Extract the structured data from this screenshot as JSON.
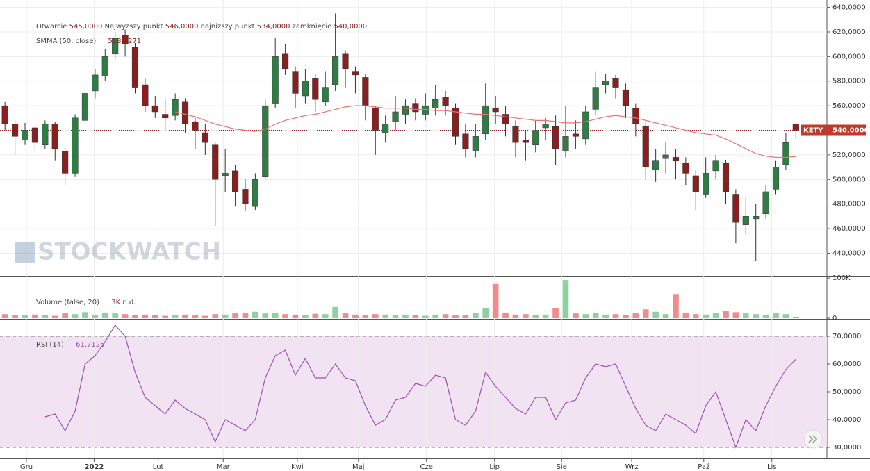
{
  "chart_data": [
    {
      "type": "candlestick",
      "symbol": "KETY",
      "last_label": "540,0000",
      "watermark": "STOCKWATCH",
      "legend": [
        {
          "name": "Otwarcie",
          "label": "545,0000"
        },
        {
          "name": "Najwyzszy punkt",
          "label": "546,0000"
        },
        {
          "name": "najnizszy punkt",
          "label": "534,0000"
        },
        {
          "name": "zamknięcie",
          "label": "540,0000"
        }
      ],
      "categories": [
        null,
        null,
        null,
        null,
        null,
        null,
        null,
        null,
        null,
        null,
        null,
        null,
        null,
        null,
        null,
        null,
        null,
        null,
        null,
        null,
        null,
        null,
        null,
        null,
        null,
        null,
        null,
        null,
        null,
        null,
        null,
        null,
        null,
        null,
        null,
        null,
        null,
        null,
        null,
        null,
        null,
        null,
        null,
        null,
        null,
        null,
        null,
        null,
        null,
        null,
        null,
        null,
        null,
        null,
        null,
        null,
        null,
        null,
        null,
        null,
        null,
        null,
        null,
        null,
        null,
        null,
        null,
        null,
        null,
        null,
        null,
        null,
        null,
        null,
        null,
        null,
        null,
        null,
        null,
        null
      ],
      "open": [
        560,
        545,
        532,
        542,
        528,
        545,
        523,
        505,
        548,
        572,
        584,
        602,
        617,
        608,
        577,
        560,
        553,
        552,
        563,
        547,
        538,
        528,
        503,
        507,
        492,
        478,
        502,
        562,
        602,
        588,
        568,
        582,
        563,
        577,
        602,
        588,
        583,
        558,
        538,
        547,
        553,
        562,
        553,
        558,
        567,
        558,
        537,
        523,
        537,
        558,
        553,
        543,
        532,
        528,
        542,
        543,
        523,
        537,
        533,
        557,
        577,
        582,
        573,
        558,
        543,
        508,
        517,
        518,
        513,
        503,
        488,
        507,
        513,
        488,
        463,
        468,
        472,
        492,
        512,
        545
      ],
      "high": [
        563,
        548,
        546,
        545,
        548,
        547,
        526,
        553,
        575,
        590,
        606,
        620,
        622,
        611,
        582,
        568,
        566,
        570,
        566,
        550,
        545,
        530,
        525,
        512,
        500,
        505,
        565,
        615,
        610,
        592,
        590,
        586,
        588,
        635,
        605,
        592,
        586,
        560,
        552,
        568,
        565,
        566,
        570,
        577,
        572,
        562,
        545,
        545,
        578,
        568,
        560,
        548,
        540,
        548,
        550,
        552,
        560,
        548,
        560,
        588,
        586,
        585,
        578,
        562,
        546,
        525,
        530,
        525,
        518,
        508,
        518,
        520,
        516,
        492,
        486,
        480,
        495,
        515,
        538,
        546
      ],
      "low": [
        540,
        520,
        528,
        522,
        525,
        515,
        495,
        502,
        545,
        566,
        580,
        598,
        600,
        570,
        555,
        550,
        540,
        548,
        538,
        525,
        520,
        462,
        490,
        478,
        474,
        475,
        500,
        558,
        585,
        558,
        562,
        555,
        560,
        572,
        575,
        570,
        548,
        520,
        530,
        540,
        545,
        548,
        548,
        552,
        552,
        528,
        518,
        518,
        532,
        545,
        535,
        518,
        515,
        522,
        532,
        512,
        518,
        525,
        528,
        552,
        570,
        566,
        550,
        535,
        500,
        498,
        505,
        500,
        495,
        475,
        485,
        500,
        480,
        448,
        455,
        434,
        468,
        488,
        508,
        534
      ],
      "close": [
        545,
        535,
        540,
        530,
        545,
        525,
        505,
        550,
        570,
        585,
        600,
        615,
        610,
        575,
        560,
        555,
        550,
        565,
        545,
        540,
        530,
        500,
        505,
        490,
        480,
        500,
        560,
        600,
        590,
        570,
        580,
        565,
        575,
        600,
        590,
        585,
        560,
        540,
        545,
        555,
        560,
        555,
        560,
        565,
        560,
        535,
        525,
        535,
        560,
        555,
        545,
        530,
        530,
        540,
        545,
        525,
        535,
        535,
        555,
        575,
        580,
        575,
        560,
        545,
        510,
        515,
        520,
        515,
        505,
        490,
        505,
        515,
        490,
        465,
        470,
        470,
        490,
        510,
        530,
        540
      ],
      "up_color": "#2f7d45",
      "down_color": "#8b1e1e",
      "series": [
        {
          "name": "SMMA (50, close)",
          "color": "#f07070",
          "last_label": "518,7271",
          "values": [
            null,
            null,
            null,
            null,
            null,
            null,
            null,
            null,
            null,
            null,
            null,
            null,
            null,
            null,
            null,
            null,
            null,
            555,
            553,
            551,
            548,
            545,
            543,
            541,
            540,
            539,
            541,
            545,
            548,
            550,
            552,
            553,
            555,
            557,
            559,
            560,
            560,
            559,
            558,
            558,
            558,
            557,
            557,
            556,
            556,
            555,
            554,
            553,
            553,
            552,
            551,
            550,
            549,
            548,
            548,
            547,
            546,
            546,
            547,
            549,
            551,
            552,
            551,
            550,
            548,
            546,
            544,
            542,
            540,
            538,
            537,
            536,
            533,
            529,
            525,
            521,
            519,
            518,
            518,
            518.7271
          ]
        }
      ],
      "xlim": [
        -0.5,
        82.1
      ],
      "ylim": [
        421,
        646
      ],
      "yticks": [
        {
          "value": 440,
          "label": "440,0000"
        },
        {
          "value": 460,
          "label": "460,0000"
        },
        {
          "value": 480,
          "label": "480,0000"
        },
        {
          "value": 500,
          "label": "500,0000"
        },
        {
          "value": 520,
          "label": "520,0000"
        },
        {
          "value": 540,
          "label": "540,0000"
        },
        {
          "value": 560,
          "label": "560,0000"
        },
        {
          "value": 580,
          "label": "580,0000"
        },
        {
          "value": 600,
          "label": "600,0000"
        },
        {
          "value": 620,
          "label": "620,0000"
        },
        {
          "value": 640,
          "label": "640,0000"
        }
      ],
      "xticks": [
        {
          "value": 2.14,
          "label": "Gru"
        },
        {
          "value": 8.9,
          "label": "2022"
        },
        {
          "value": 15.3,
          "label": "Lut"
        },
        {
          "value": 21.8,
          "label": "Mar"
        },
        {
          "value": 29.2,
          "label": "Kwi"
        },
        {
          "value": 35.3,
          "label": "Maj"
        },
        {
          "value": 42.1,
          "label": "Cze"
        },
        {
          "value": 48.9,
          "label": "Lip"
        },
        {
          "value": 55.6,
          "label": "Sie"
        },
        {
          "value": 62.6,
          "label": "Wrz"
        },
        {
          "value": 69.8,
          "label": "Paź"
        },
        {
          "value": 76.6,
          "label": "Lis"
        }
      ],
      "grid": true
    },
    {
      "type": "bar",
      "name": "Volume (false, 20)",
      "last_label": "3K",
      "note": "n.d.",
      "up_color": "#8fd19e",
      "down_color": "#f28b8b",
      "values": [
        10000,
        8000,
        7000,
        9000,
        8000,
        6000,
        12000,
        10000,
        15000,
        8000,
        14000,
        12000,
        10000,
        8000,
        9000,
        7000,
        6000,
        8000,
        9000,
        7000,
        6000,
        10000,
        9000,
        12000,
        14000,
        16000,
        12000,
        14000,
        10000,
        9000,
        8000,
        11000,
        10000,
        28000,
        12000,
        9000,
        8000,
        10000,
        9000,
        7000,
        9000,
        8000,
        6000,
        9000,
        10000,
        7000,
        8000,
        12000,
        25000,
        85000,
        14000,
        9000,
        10000,
        8000,
        9000,
        25000,
        95000,
        12000,
        10000,
        14000,
        9000,
        10000,
        8000,
        12000,
        22000,
        16000,
        10000,
        60000,
        14000,
        10000,
        9000,
        12000,
        18000,
        15000,
        12000,
        10000,
        9000,
        12000,
        10000,
        3000
      ],
      "ylim": [
        0,
        102000
      ],
      "yticks": [
        0,
        {
          "value": 100000,
          "label": "100K"
        }
      ]
    },
    {
      "type": "line",
      "name": "RSI (14)",
      "last_label": "61,7125",
      "color": "#9c4fb0",
      "band": [
        30,
        70
      ],
      "band_color": "#f1e3f2",
      "values": [
        null,
        null,
        null,
        null,
        41,
        42,
        36,
        43,
        60,
        63,
        68,
        74,
        70,
        57,
        48,
        45,
        42,
        47,
        44,
        42,
        40,
        32,
        40,
        38,
        36,
        40,
        55,
        63,
        65,
        56,
        62,
        55,
        55,
        60,
        55,
        54,
        45,
        38,
        40,
        47,
        48,
        53,
        52,
        56,
        55,
        40,
        38,
        43,
        57,
        52,
        48,
        44,
        42,
        48,
        48,
        40,
        46,
        47,
        55,
        60,
        59,
        60,
        52,
        44,
        38,
        36,
        42,
        40,
        38,
        35,
        45,
        50,
        40,
        30,
        40,
        36,
        45,
        52,
        58,
        61.7125
      ],
      "ylim": [
        26,
        76
      ],
      "yticks": [
        {
          "value": 30,
          "label": "30,0000"
        },
        {
          "value": 40,
          "label": "40,0000"
        },
        {
          "value": 50,
          "label": "50,0000"
        },
        {
          "value": 60,
          "label": "60,0000"
        },
        {
          "value": 70,
          "label": "70,0000"
        }
      ]
    }
  ]
}
